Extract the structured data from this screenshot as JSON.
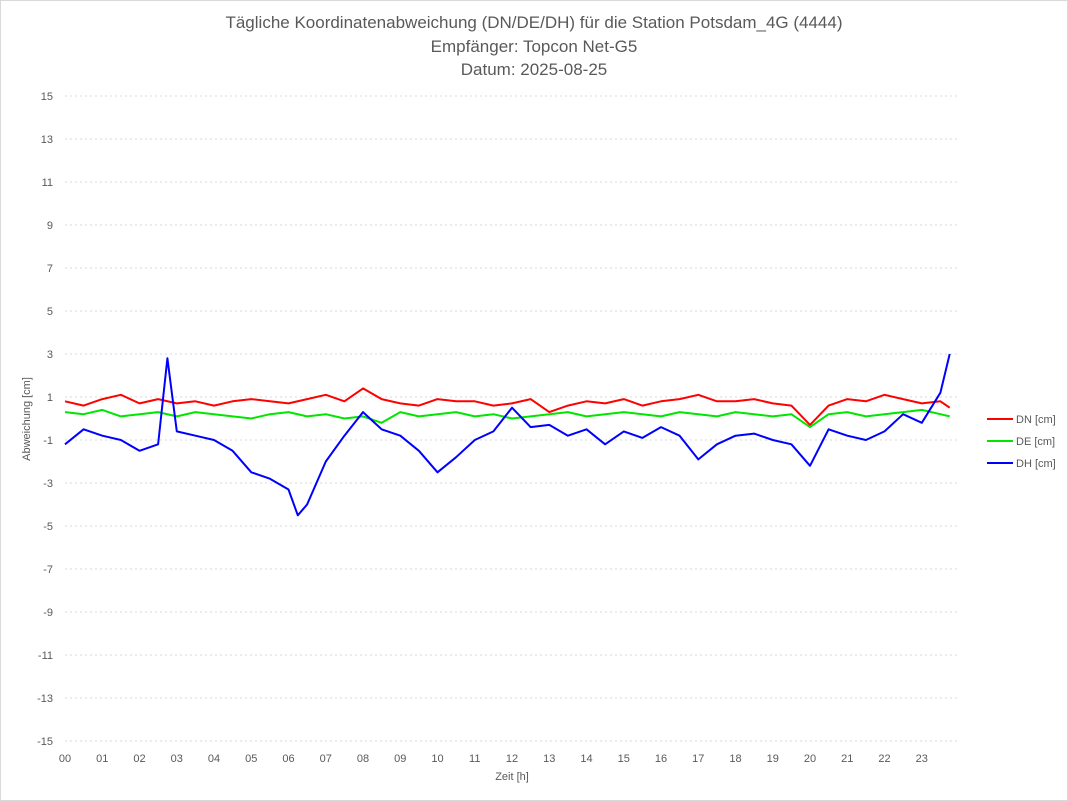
{
  "chart_data": {
    "type": "line",
    "title": "Tägliche Koordinatenabweichung (DN/DE/DH) für die Station Potsdam_4G (4444)",
    "subtitle1": "Empfänger: Topcon Net-G5",
    "subtitle2": "Datum: 2025-08-25",
    "xlabel": "Zeit [h]",
    "ylabel": "Abweichung [cm]",
    "xlim": [
      0,
      24
    ],
    "ylim": [
      -15,
      15
    ],
    "y_ticks": [
      15,
      13,
      11,
      9,
      7,
      5,
      3,
      1,
      -1,
      -3,
      -5,
      -7,
      -9,
      -11,
      -13,
      -15
    ],
    "x_tick_labels": [
      "00",
      "01",
      "02",
      "03",
      "04",
      "05",
      "06",
      "07",
      "08",
      "09",
      "10",
      "11",
      "12",
      "13",
      "14",
      "15",
      "16",
      "17",
      "18",
      "19",
      "20",
      "21",
      "22",
      "23"
    ],
    "grid": true,
    "legend_position": "right",
    "colors": {
      "DN": "#ff0000",
      "DE": "#00e600",
      "DH": "#0000ff",
      "grid": "#d9d9d9",
      "text": "#595959"
    },
    "series": [
      {
        "name": "DN [cm]",
        "color": "#ff0000",
        "x": [
          0,
          0.5,
          1,
          1.5,
          2,
          2.5,
          3,
          3.5,
          4,
          4.5,
          5,
          5.5,
          6,
          6.5,
          7,
          7.5,
          8,
          8.5,
          9,
          9.5,
          10,
          10.5,
          11,
          11.5,
          12,
          12.5,
          13,
          13.5,
          14,
          14.5,
          15,
          15.5,
          16,
          16.5,
          17,
          17.5,
          18,
          18.5,
          19,
          19.5,
          20,
          20.5,
          21,
          21.5,
          22,
          22.5,
          23,
          23.5,
          23.75
        ],
        "values": [
          0.8,
          0.6,
          0.9,
          1.1,
          0.7,
          0.9,
          0.7,
          0.8,
          0.6,
          0.8,
          0.9,
          0.8,
          0.7,
          0.9,
          1.1,
          0.8,
          1.4,
          0.9,
          0.7,
          0.6,
          0.9,
          0.8,
          0.8,
          0.6,
          0.7,
          0.9,
          0.3,
          0.6,
          0.8,
          0.7,
          0.9,
          0.6,
          0.8,
          0.9,
          1.1,
          0.8,
          0.8,
          0.9,
          0.7,
          0.6,
          -0.3,
          0.6,
          0.9,
          0.8,
          1.1,
          0.9,
          0.7,
          0.8,
          0.5
        ]
      },
      {
        "name": "DE [cm]",
        "color": "#00e600",
        "x": [
          0,
          0.5,
          1,
          1.5,
          2,
          2.5,
          3,
          3.5,
          4,
          4.5,
          5,
          5.5,
          6,
          6.5,
          7,
          7.5,
          8,
          8.5,
          9,
          9.5,
          10,
          10.5,
          11,
          11.5,
          12,
          12.5,
          13,
          13.5,
          14,
          14.5,
          15,
          15.5,
          16,
          16.5,
          17,
          17.5,
          18,
          18.5,
          19,
          19.5,
          20,
          20.5,
          21,
          21.5,
          22,
          22.5,
          23,
          23.5,
          23.75
        ],
        "values": [
          0.3,
          0.2,
          0.4,
          0.1,
          0.2,
          0.3,
          0.1,
          0.3,
          0.2,
          0.1,
          0.0,
          0.2,
          0.3,
          0.1,
          0.2,
          0.0,
          0.1,
          -0.2,
          0.3,
          0.1,
          0.2,
          0.3,
          0.1,
          0.2,
          0.0,
          0.1,
          0.2,
          0.3,
          0.1,
          0.2,
          0.3,
          0.2,
          0.1,
          0.3,
          0.2,
          0.1,
          0.3,
          0.2,
          0.1,
          0.2,
          -0.4,
          0.2,
          0.3,
          0.1,
          0.2,
          0.3,
          0.4,
          0.2,
          0.1
        ]
      },
      {
        "name": "DH [cm]",
        "color": "#0000ff",
        "x": [
          0,
          0.5,
          1,
          1.5,
          2,
          2.5,
          2.75,
          3,
          3.5,
          4,
          4.5,
          5,
          5.5,
          6,
          6.25,
          6.5,
          7,
          7.5,
          8,
          8.5,
          9,
          9.5,
          10,
          10.5,
          11,
          11.5,
          12,
          12.5,
          13,
          13.5,
          14,
          14.5,
          15,
          15.5,
          16,
          16.5,
          17,
          17.5,
          18,
          18.5,
          19,
          19.5,
          20,
          20.5,
          21,
          21.5,
          22,
          22.5,
          23,
          23.5,
          23.75
        ],
        "values": [
          -1.2,
          -0.5,
          -0.8,
          -1.0,
          -1.5,
          -1.2,
          2.8,
          -0.6,
          -0.8,
          -1.0,
          -1.5,
          -2.5,
          -2.8,
          -3.3,
          -4.5,
          -4.0,
          -2.0,
          -0.8,
          0.3,
          -0.5,
          -0.8,
          -1.5,
          -2.5,
          -1.8,
          -1.0,
          -0.6,
          0.5,
          -0.4,
          -0.3,
          -0.8,
          -0.5,
          -1.2,
          -0.6,
          -0.9,
          -0.4,
          -0.8,
          -1.9,
          -1.2,
          -0.8,
          -0.7,
          -1.0,
          -1.2,
          -2.2,
          -0.5,
          -0.8,
          -1.0,
          -0.6,
          0.2,
          -0.2,
          1.2,
          3.0
        ]
      }
    ]
  }
}
